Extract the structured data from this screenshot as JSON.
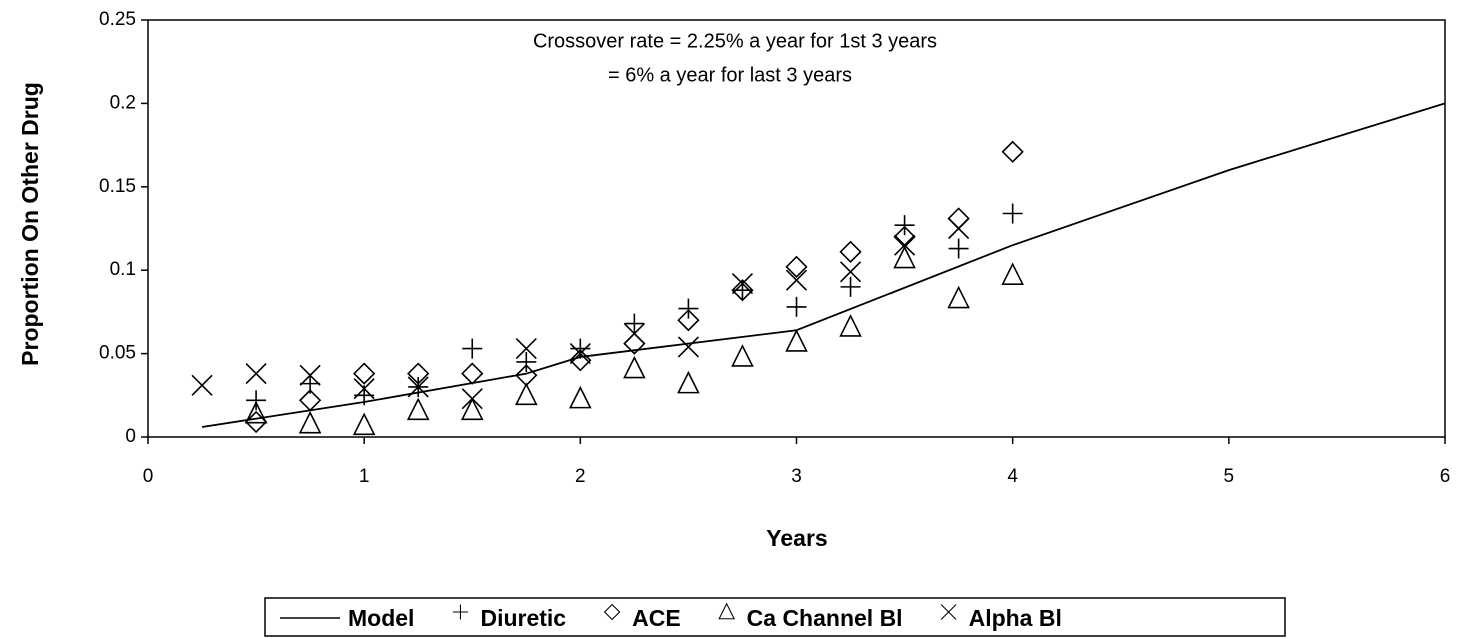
{
  "chart_data": {
    "type": "scatter",
    "annotation": [
      "Crossover rate = 2.25% a year for 1st 3 years",
      "= 6% a year for last 3 years"
    ],
    "x_label": "Years",
    "y_label": "Proportion On Other Drug",
    "xlim": [
      0,
      6
    ],
    "xticks": [
      0,
      1,
      2,
      3,
      4,
      5,
      6
    ],
    "ylim": [
      0,
      0.25
    ],
    "yticks": [
      0,
      0.05,
      0.1,
      0.15,
      0.2,
      0.25
    ],
    "legend": "bottom",
    "grid": false,
    "series": [
      {
        "name": "Model",
        "type": "line",
        "color": "#000000",
        "x": [
          0.25,
          1,
          1.75,
          2,
          3,
          4,
          5,
          6
        ],
        "values": [
          0.006,
          0.021,
          0.038,
          0.048,
          0.064,
          0.115,
          0.16,
          0.2
        ]
      },
      {
        "name": "Diuretic",
        "type": "scatter",
        "marker": "plus",
        "color": "#000000",
        "x": [
          0.5,
          0.75,
          1,
          1.25,
          1.5,
          1.75,
          2,
          2.25,
          2.5,
          2.75,
          3,
          3.25,
          3.5,
          3.75,
          4
        ],
        "values": [
          0.022,
          0.032,
          0.025,
          0.03,
          0.053,
          0.045,
          0.053,
          0.068,
          0.077,
          0.088,
          0.078,
          0.09,
          0.127,
          0.113,
          0.134
        ]
      },
      {
        "name": "ACE",
        "type": "scatter",
        "marker": "diamond",
        "color": "#000000",
        "x": [
          0.5,
          0.75,
          1,
          1.25,
          1.5,
          1.75,
          2,
          2.25,
          2.5,
          2.75,
          3,
          3.25,
          3.5,
          3.75,
          4
        ],
        "values": [
          0.009,
          0.022,
          0.038,
          0.038,
          0.038,
          0.037,
          0.046,
          0.056,
          0.07,
          0.088,
          0.102,
          0.111,
          0.12,
          0.131,
          0.171
        ]
      },
      {
        "name": "Ca Channel Bl",
        "type": "scatter",
        "marker": "triangle",
        "color": "#000000",
        "x": [
          0.5,
          0.75,
          1,
          1.25,
          1.5,
          1.75,
          2,
          2.25,
          2.5,
          2.75,
          3,
          3.25,
          3.5,
          3.75,
          4
        ],
        "values": [
          0.014,
          0.008,
          0.007,
          0.016,
          0.016,
          0.025,
          0.023,
          0.041,
          0.032,
          0.048,
          0.057,
          0.066,
          0.107,
          0.083,
          0.097
        ]
      },
      {
        "name": "Alpha Bl",
        "type": "scatter",
        "marker": "cross",
        "color": "#000000",
        "x": [
          0.25,
          0.5,
          0.75,
          1,
          1.25,
          1.5,
          1.75,
          2,
          2.25,
          2.5,
          2.75,
          3,
          3.25,
          3.5,
          3.75
        ],
        "values": [
          0.031,
          0.038,
          0.037,
          0.029,
          0.03,
          0.023,
          0.053,
          0.05,
          0.062,
          0.054,
          0.092,
          0.094,
          0.099,
          0.115,
          0.125
        ]
      }
    ]
  }
}
